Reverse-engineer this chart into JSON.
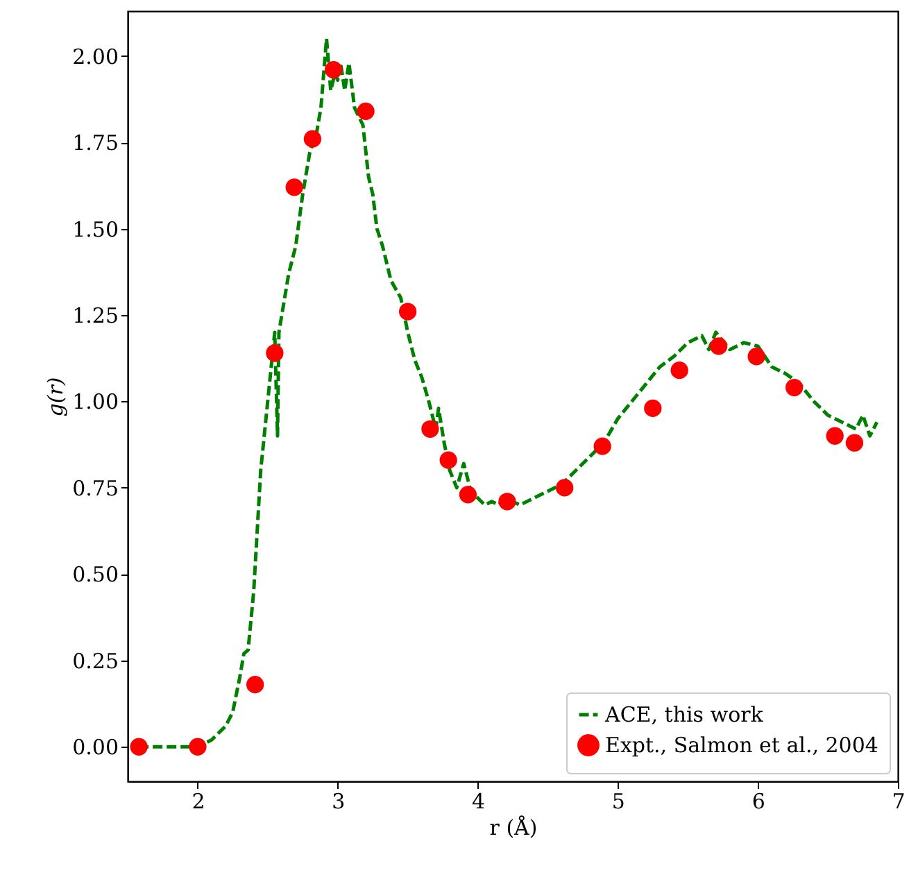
{
  "chart_data": {
    "type": "line",
    "xlabel": "r (Å)",
    "ylabel": "g(r)",
    "xlim": [
      1.5,
      7.0
    ],
    "xticks": [
      2,
      3,
      4,
      5,
      6,
      7
    ],
    "ylim": [
      -0.1,
      2.13
    ],
    "yticks": [
      {
        "value": 0,
        "label": "0.00"
      },
      0.25,
      {
        "value": 0.5,
        "label": "0.50"
      },
      0.75,
      {
        "value": 1,
        "label": "1.00"
      },
      1.25,
      {
        "value": 1.5,
        "label": "1.50"
      },
      1.75,
      {
        "value": 2,
        "label": "2.00"
      }
    ],
    "legend": "bottom right",
    "grid": false,
    "series": [
      {
        "name": "ACE, this work",
        "line_style": "dashed",
        "marker": "none",
        "color": "#008000",
        "x": [
          1.58,
          2.0,
          2.1,
          2.2,
          2.25,
          2.3,
          2.33,
          2.36,
          2.4,
          2.45,
          2.5,
          2.55,
          2.57,
          2.58,
          2.65,
          2.7,
          2.75,
          2.8,
          2.85,
          2.88,
          2.92,
          2.95,
          2.98,
          3.0,
          3.02,
          3.05,
          3.08,
          3.12,
          3.18,
          3.22,
          3.25,
          3.28,
          3.32,
          3.38,
          3.45,
          3.5,
          3.55,
          3.6,
          3.65,
          3.7,
          3.72,
          3.76,
          3.8,
          3.85,
          3.9,
          3.95,
          4.0,
          4.05,
          4.1,
          4.15,
          4.2,
          4.3,
          4.4,
          4.5,
          4.6,
          4.7,
          4.8,
          4.9,
          5.0,
          5.1,
          5.2,
          5.3,
          5.4,
          5.5,
          5.6,
          5.65,
          5.7,
          5.8,
          5.9,
          6.0,
          6.1,
          6.2,
          6.3,
          6.4,
          6.5,
          6.6,
          6.7,
          6.75,
          6.8,
          6.85
        ],
        "values": [
          0.0,
          0.0,
          0.02,
          0.06,
          0.1,
          0.2,
          0.27,
          0.28,
          0.45,
          0.8,
          1.0,
          1.2,
          0.9,
          1.2,
          1.37,
          1.45,
          1.6,
          1.72,
          1.78,
          1.85,
          2.05,
          1.9,
          1.95,
          1.93,
          1.98,
          1.9,
          1.98,
          1.85,
          1.8,
          1.65,
          1.6,
          1.5,
          1.45,
          1.35,
          1.3,
          1.2,
          1.12,
          1.07,
          1.0,
          0.92,
          0.98,
          0.88,
          0.8,
          0.75,
          0.82,
          0.74,
          0.72,
          0.7,
          0.71,
          0.7,
          0.72,
          0.7,
          0.72,
          0.74,
          0.76,
          0.8,
          0.84,
          0.88,
          0.95,
          1.0,
          1.05,
          1.1,
          1.13,
          1.17,
          1.19,
          1.15,
          1.2,
          1.15,
          1.17,
          1.16,
          1.1,
          1.08,
          1.05,
          1.0,
          0.96,
          0.94,
          0.92,
          0.96,
          0.9,
          0.94
        ]
      },
      {
        "name": "Expt., Salmon et al., 2004",
        "type": "scatter",
        "marker": "circle",
        "color": "#ff0000",
        "x": [
          1.58,
          2.0,
          2.41,
          2.55,
          2.69,
          2.82,
          2.97,
          3.2,
          3.5,
          3.66,
          3.79,
          3.93,
          4.21,
          4.62,
          4.89,
          5.25,
          5.44,
          5.72,
          5.99,
          6.26,
          6.55,
          6.69
        ],
        "values": [
          0.0,
          0.0,
          0.18,
          1.14,
          1.62,
          1.76,
          1.96,
          1.84,
          1.26,
          0.92,
          0.83,
          0.73,
          0.71,
          0.75,
          0.87,
          0.98,
          1.09,
          1.16,
          1.13,
          1.04,
          0.9,
          0.88
        ]
      }
    ]
  }
}
